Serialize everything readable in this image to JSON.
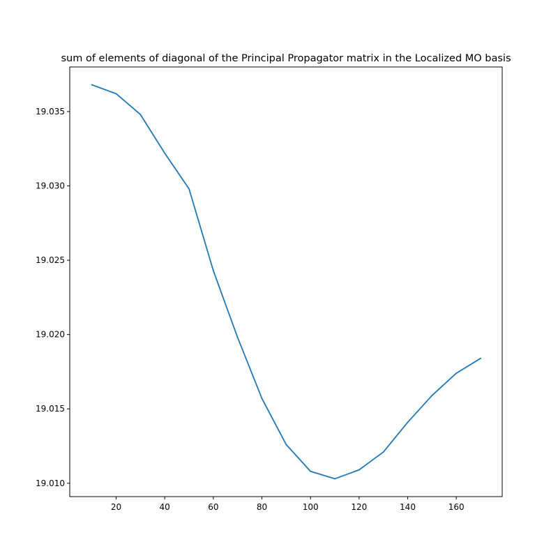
{
  "chart_data": {
    "type": "line",
    "title": "sum of elements of diagonal of the Principal Propagator matrix in the Localized MO basis",
    "xlabel": "",
    "ylabel": "",
    "x": [
      10,
      20,
      30,
      40,
      50,
      60,
      70,
      80,
      90,
      100,
      110,
      120,
      130,
      140,
      150,
      160,
      170
    ],
    "series": [
      {
        "values": [
          19.0368,
          19.0362,
          19.0348,
          19.0322,
          19.0298,
          19.0243,
          19.0198,
          19.0157,
          19.0126,
          19.0108,
          19.0103,
          19.0109,
          19.0121,
          19.0141,
          19.0159,
          19.0174,
          19.0184
        ],
        "color": "#1f77b4"
      }
    ],
    "xlim": [
      0.9,
      178.9
    ],
    "ylim": [
      19.0091,
      19.038
    ],
    "xticks": [
      20,
      40,
      60,
      80,
      100,
      120,
      140,
      160
    ],
    "xtick_labels": [
      "20",
      "40",
      "60",
      "80",
      "100",
      "120",
      "140",
      "160"
    ],
    "yticks": [
      19.01,
      19.015,
      19.02,
      19.025,
      19.03,
      19.035
    ],
    "ytick_labels": [
      "19.010",
      "19.015",
      "19.020",
      "19.025",
      "19.030",
      "19.035"
    ],
    "grid": false,
    "legend": "none"
  }
}
